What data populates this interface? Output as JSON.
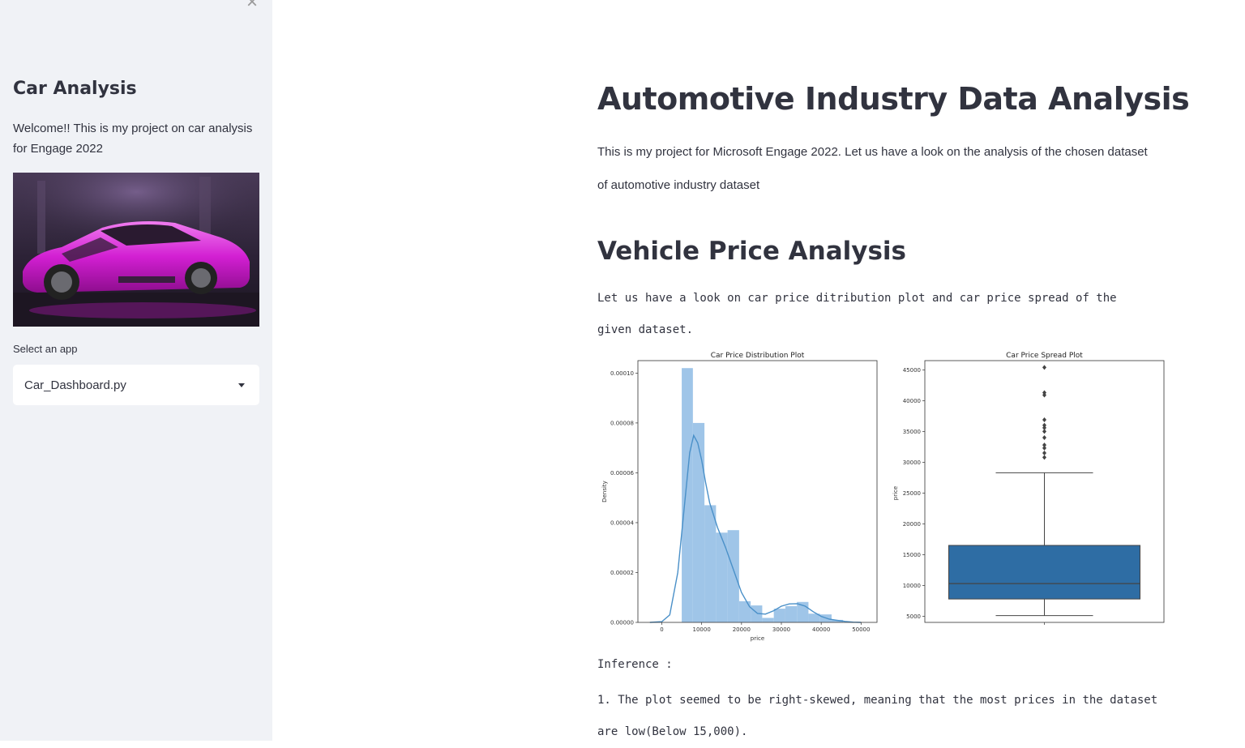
{
  "sidebar": {
    "close_icon": "close-icon",
    "title": "Car Analysis",
    "welcome": "Welcome!! This is my project on car analysis for Engage 2022",
    "image": "pink sports car",
    "select_label": "Select an app",
    "select_value": "Car_Dashboard.py"
  },
  "main": {
    "title": "Automotive Industry Data Analysis",
    "intro": "This is my project for Microsoft Engage 2022. Let us have a look on the analysis of the chosen dataset of automotive industry dataset",
    "section_title": "Vehicle Price Analysis",
    "section_text": "Let us have a look on car price ditribution plot and car price spread of the given dataset.",
    "inference_label": "Inference :",
    "inference_1": "1. The plot seemed to be right-skewed, meaning that the most prices in the dataset are low(Below 15,000)."
  },
  "colors": {
    "sidebar_bg": "#f0f2f6",
    "hist_fill": "#9fc5e8",
    "kde_line": "#4a90c8",
    "box_fill": "#2e6da4"
  },
  "chart_data": [
    {
      "type": "bar",
      "title": "Car Price Distribution Plot",
      "xlabel": "price",
      "ylabel": "Density",
      "xlim": [
        -6000,
        54000
      ],
      "ylim": [
        0,
        0.000105
      ],
      "x_ticks": [
        0,
        10000,
        20000,
        30000,
        40000,
        50000
      ],
      "y_ticks": [
        "0.00000",
        "0.00002",
        "0.00004",
        "0.00006",
        "0.00008",
        "0.00010"
      ],
      "y_tick_values": [
        0,
        2e-05,
        4e-05,
        6e-05,
        8e-05,
        0.0001
      ],
      "bins": [
        {
          "x0": 5000,
          "x1": 7800,
          "value": 0.000102
        },
        {
          "x0": 7800,
          "x1": 10700,
          "value": 8e-05
        },
        {
          "x0": 10700,
          "x1": 13600,
          "value": 4.7e-05
        },
        {
          "x0": 13600,
          "x1": 16500,
          "value": 3.6e-05
        },
        {
          "x0": 16500,
          "x1": 19400,
          "value": 3.7e-05
        },
        {
          "x0": 19400,
          "x1": 22300,
          "value": 8.5e-06
        },
        {
          "x0": 22300,
          "x1": 25200,
          "value": 6.8e-06
        },
        {
          "x0": 25200,
          "x1": 28100,
          "value": 1.8e-06
        },
        {
          "x0": 28100,
          "x1": 31000,
          "value": 5.5e-06
        },
        {
          "x0": 31000,
          "x1": 33900,
          "value": 6.5e-06
        },
        {
          "x0": 33900,
          "x1": 36800,
          "value": 8.2e-06
        },
        {
          "x0": 36800,
          "x1": 39700,
          "value": 3.5e-06
        },
        {
          "x0": 39700,
          "x1": 42600,
          "value": 3.2e-06
        },
        {
          "x0": 42600,
          "x1": 45500,
          "value": 1e-06
        }
      ],
      "kde": {
        "x": [
          -3000,
          0,
          2000,
          4000,
          6000,
          7000,
          8000,
          9000,
          10000,
          11000,
          12000,
          14000,
          16000,
          18000,
          20000,
          22000,
          24000,
          26000,
          28000,
          30000,
          32000,
          34000,
          36000,
          38000,
          40000,
          42000,
          44000,
          46000,
          48000,
          50000
        ],
        "y": [
          0,
          3e-07,
          3e-06,
          2e-05,
          5.2e-05,
          6.8e-05,
          7.5e-05,
          7.2e-05,
          6.5e-05,
          5.6e-05,
          4.8e-05,
          3.8e-05,
          3e-05,
          2.1e-05,
          1.2e-05,
          6.3e-06,
          3.6e-06,
          3.3e-06,
          4.6e-06,
          6.5e-06,
          7.4e-06,
          7.5e-06,
          6.5e-06,
          4.3e-06,
          2.4e-06,
          1.3e-06,
          8e-07,
          4e-07,
          1e-07,
          0
        ]
      }
    },
    {
      "type": "box",
      "title": "Car Price Spread Plot",
      "ylabel": "price",
      "ylim": [
        4000,
        46500
      ],
      "y_ticks": [
        5000,
        10000,
        15000,
        20000,
        25000,
        30000,
        35000,
        40000,
        45000
      ],
      "whisker_low": 5100,
      "q1": 7800,
      "median": 10300,
      "q3": 16500,
      "whisker_high": 28300,
      "outliers": [
        30800,
        31500,
        32300,
        32800,
        34000,
        35000,
        35600,
        36000,
        36900,
        40900,
        41300,
        45400
      ]
    }
  ]
}
